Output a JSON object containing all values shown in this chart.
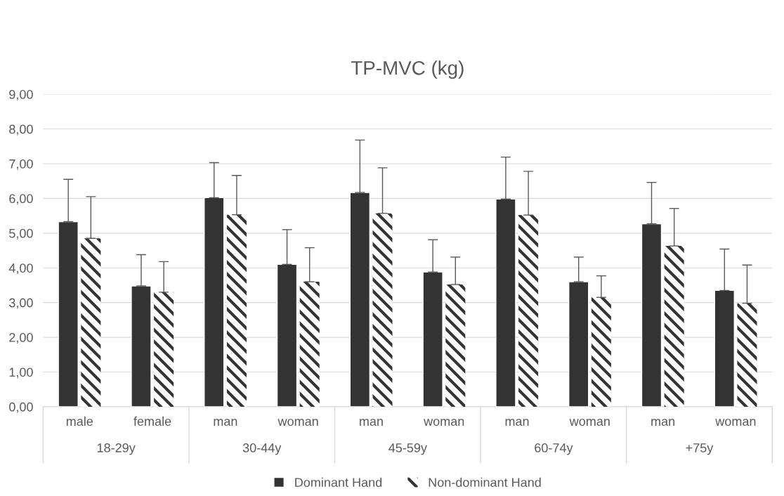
{
  "chart_data": {
    "type": "bar",
    "title": "TP-MVC (kg)",
    "categories": [
      "male",
      "female",
      "man",
      "woman",
      "man",
      "woman",
      "man",
      "woman",
      "man",
      "woman"
    ],
    "annotations": [
      "18-29y",
      "30-44y",
      "45-59y",
      "60-74y",
      "+75y"
    ],
    "series": [
      {
        "name": "Dominant Hand",
        "color": "#333333",
        "values": [
          5.33,
          3.48,
          6.02,
          4.1,
          6.17,
          3.88,
          5.98,
          3.6,
          5.27,
          3.35
        ],
        "errors": [
          [
            5.33,
            6.55
          ],
          [
            3.48,
            4.38
          ],
          [
            6.02,
            7.03
          ],
          [
            4.1,
            5.1
          ],
          [
            6.17,
            7.68
          ],
          [
            3.88,
            4.81
          ],
          [
            5.98,
            7.19
          ],
          [
            3.6,
            4.31
          ],
          [
            5.27,
            6.46
          ],
          [
            3.35,
            4.54
          ]
        ]
      },
      {
        "name": "Non-dominant Hand",
        "color": "#333333",
        "values": [
          4.85,
          3.3,
          5.53,
          3.6,
          5.57,
          3.52,
          5.52,
          3.15,
          4.63,
          2.98
        ],
        "errors": [
          [
            4.85,
            6.05
          ],
          [
            3.3,
            4.18
          ],
          [
            5.53,
            6.66
          ],
          [
            3.6,
            4.58
          ],
          [
            5.57,
            6.88
          ],
          [
            3.52,
            4.31
          ],
          [
            5.52,
            6.78
          ],
          [
            3.15,
            3.77
          ],
          [
            4.63,
            5.71
          ],
          [
            2.98,
            4.08
          ]
        ]
      }
    ],
    "ylim": [
      0,
      9
    ],
    "yticks": [
      {
        "value": 0,
        "label": "0,00"
      },
      {
        "value": 1,
        "label": "1,00"
      },
      {
        "value": 2,
        "label": "2,00"
      },
      {
        "value": 3,
        "label": "3,00"
      },
      {
        "value": 4,
        "label": "4,00"
      },
      {
        "value": 5,
        "label": "5,00"
      },
      {
        "value": 6,
        "label": "6,00"
      },
      {
        "value": 7,
        "label": "7,00"
      },
      {
        "value": 8,
        "label": "8,00"
      },
      {
        "value": 9,
        "label": "9,00"
      }
    ],
    "grid": "y",
    "legend": "bottom"
  }
}
